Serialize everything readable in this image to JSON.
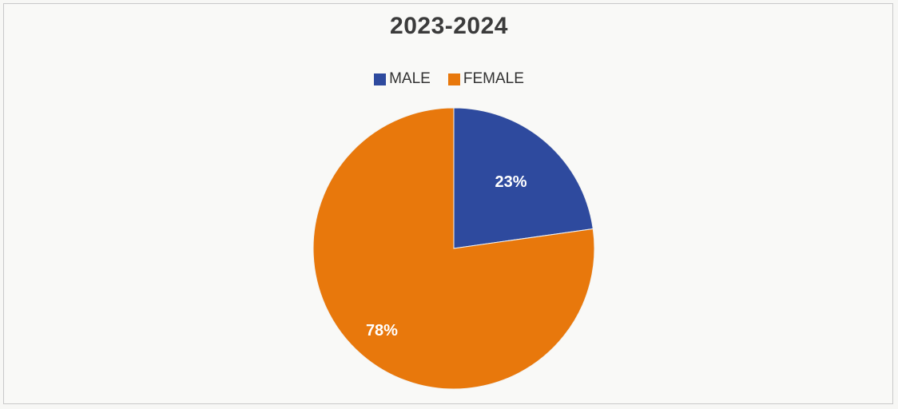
{
  "chart_data": {
    "type": "pie",
    "title": "2023-2024",
    "legend_position": "top",
    "categories": [
      "MALE",
      "FEMALE"
    ],
    "values": [
      23,
      78
    ],
    "data_labels": [
      "23%",
      "78%"
    ],
    "colors": [
      "#2e4a9e",
      "#e8780c"
    ]
  }
}
